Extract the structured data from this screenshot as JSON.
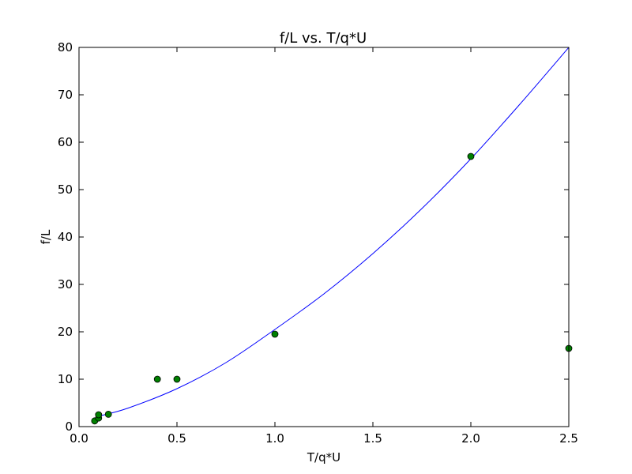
{
  "chart_data": {
    "type": "scatter",
    "title": "f/L vs. T/q*U",
    "xlabel": "T/q*U",
    "ylabel": "f/L",
    "xlim": [
      0.0,
      2.5
    ],
    "ylim": [
      0,
      80
    ],
    "xticks": [
      "0.0",
      "0.5",
      "1.0",
      "1.5",
      "2.0",
      "2.5"
    ],
    "yticks": [
      "0",
      "10",
      "20",
      "30",
      "40",
      "50",
      "60",
      "70",
      "80"
    ],
    "grid": false,
    "series": [
      {
        "kind": "points",
        "color": "#008000",
        "points": [
          {
            "x": 0.08,
            "y": 1.2
          },
          {
            "x": 0.1,
            "y": 1.8
          },
          {
            "x": 0.1,
            "y": 2.5
          },
          {
            "x": 0.15,
            "y": 2.6
          },
          {
            "x": 0.4,
            "y": 10.0
          },
          {
            "x": 0.5,
            "y": 10.0
          },
          {
            "x": 1.0,
            "y": 19.5
          },
          {
            "x": 2.0,
            "y": 57.0
          },
          {
            "x": 2.5,
            "y": 16.5
          }
        ]
      },
      {
        "kind": "fit-curve",
        "color": "#0000ff",
        "points": [
          {
            "x": 0.1,
            "y": 2.2
          },
          {
            "x": 0.25,
            "y": 3.9
          },
          {
            "x": 0.5,
            "y": 8.0
          },
          {
            "x": 0.75,
            "y": 13.5
          },
          {
            "x": 1.0,
            "y": 20.5
          },
          {
            "x": 1.25,
            "y": 28.0
          },
          {
            "x": 1.5,
            "y": 36.5
          },
          {
            "x": 1.75,
            "y": 46.0
          },
          {
            "x": 2.0,
            "y": 56.5
          },
          {
            "x": 2.25,
            "y": 68.0
          },
          {
            "x": 2.5,
            "y": 80.0
          }
        ]
      }
    ]
  }
}
